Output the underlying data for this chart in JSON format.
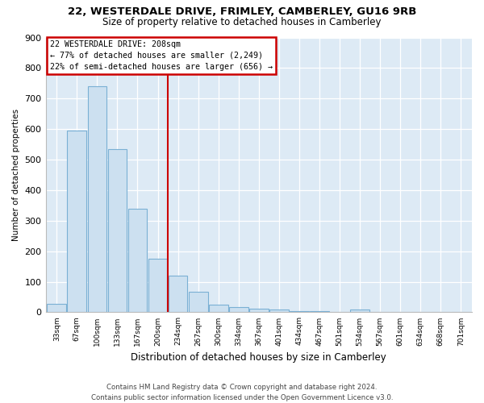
{
  "title": "22, WESTERDALE DRIVE, FRIMLEY, CAMBERLEY, GU16 9RB",
  "subtitle": "Size of property relative to detached houses in Camberley",
  "xlabel": "Distribution of detached houses by size in Camberley",
  "ylabel": "Number of detached properties",
  "bar_labels": [
    "33sqm",
    "67sqm",
    "100sqm",
    "133sqm",
    "167sqm",
    "200sqm",
    "234sqm",
    "267sqm",
    "300sqm",
    "334sqm",
    "367sqm",
    "401sqm",
    "434sqm",
    "467sqm",
    "501sqm",
    "534sqm",
    "567sqm",
    "601sqm",
    "634sqm",
    "668sqm",
    "701sqm"
  ],
  "bar_values": [
    27,
    594,
    740,
    535,
    338,
    175,
    120,
    66,
    25,
    18,
    12,
    8,
    5,
    4,
    0,
    8,
    0,
    0,
    0,
    0,
    0
  ],
  "bar_color": "#cce0f0",
  "bar_edge_color": "#7ab0d4",
  "vline_x": 5.5,
  "vline_color": "#cc0000",
  "annotation_title": "22 WESTERDALE DRIVE: 208sqm",
  "annotation_line1": "← 77% of detached houses are smaller (2,249)",
  "annotation_line2": "22% of semi-detached houses are larger (656) →",
  "annotation_box_color": "#ffffff",
  "annotation_box_edge": "#cc0000",
  "ylim": [
    0,
    900
  ],
  "yticks": [
    0,
    100,
    200,
    300,
    400,
    500,
    600,
    700,
    800,
    900
  ],
  "footer1": "Contains HM Land Registry data © Crown copyright and database right 2024.",
  "footer2": "Contains public sector information licensed under the Open Government Licence v3.0.",
  "bg_color": "#ddeaf5"
}
